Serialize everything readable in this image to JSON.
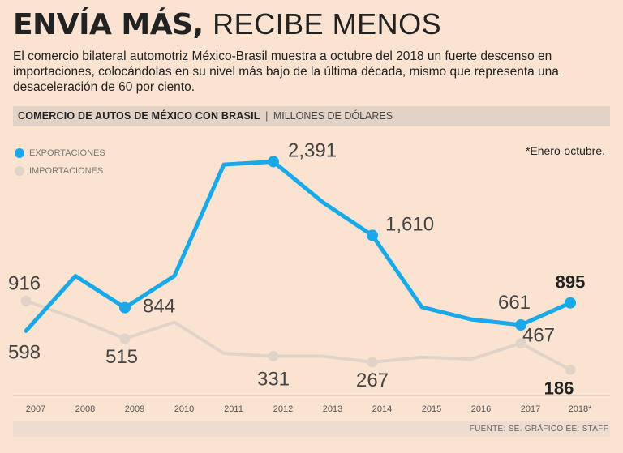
{
  "header": {
    "title_bold": "ENVÍA MÁS,",
    "title_light": "RECIBE MENOS",
    "intro": "El comercio bilateral automotriz México-Brasil muestra a octubre del 2018 un fuerte descenso en importaciones, colocándolas en su nivel más bajo de la última década, mismo que representa una desaceleración de 60 por ciento."
  },
  "subhead": {
    "title": "COMERCIO DE AUTOS DE MÉXICO CON BRASIL",
    "separator": "|",
    "unit": "MILLONES DE DÓLARES"
  },
  "note": "*Enero-octubre.",
  "source": "FUENTE: SE. GRÁFICO EE: STAFF",
  "colors": {
    "exports": "#1aa9e8",
    "imports": "#e2d3c8",
    "background": "#fbe3d2"
  },
  "chart_data": {
    "type": "line",
    "title": "COMERCIO DE AUTOS DE MÉXICO CON BRASIL",
    "ylabel": "MILLONES DE DÓLARES",
    "categories": [
      "2007",
      "2008",
      "2009",
      "2010",
      "2011",
      "2012",
      "2013",
      "2014",
      "2015",
      "2016",
      "2017",
      "2018*"
    ],
    "ylim": [
      0,
      2600
    ],
    "grid": false,
    "legend": "top-left",
    "series": [
      {
        "name": "EXPORTACIONES",
        "values": [
          598,
          1180,
          844,
          1180,
          2360,
          2391,
          1960,
          1610,
          850,
          720,
          661,
          895
        ],
        "labels": [
          {
            "index": 0,
            "text": "598"
          },
          {
            "index": 2,
            "text": "844"
          },
          {
            "index": 5,
            "text": "2,391"
          },
          {
            "index": 7,
            "text": "1,610"
          },
          {
            "index": 10,
            "text": "661"
          },
          {
            "index": 11,
            "text": "895"
          }
        ]
      },
      {
        "name": "IMPORTACIONES",
        "values": [
          916,
          730,
          515,
          690,
          360,
          331,
          330,
          267,
          320,
          300,
          467,
          186
        ],
        "labels": [
          {
            "index": 0,
            "text": "916"
          },
          {
            "index": 2,
            "text": "515"
          },
          {
            "index": 5,
            "text": "331"
          },
          {
            "index": 7,
            "text": "267"
          },
          {
            "index": 10,
            "text": "467"
          },
          {
            "index": 11,
            "text": "186"
          }
        ]
      }
    ]
  }
}
